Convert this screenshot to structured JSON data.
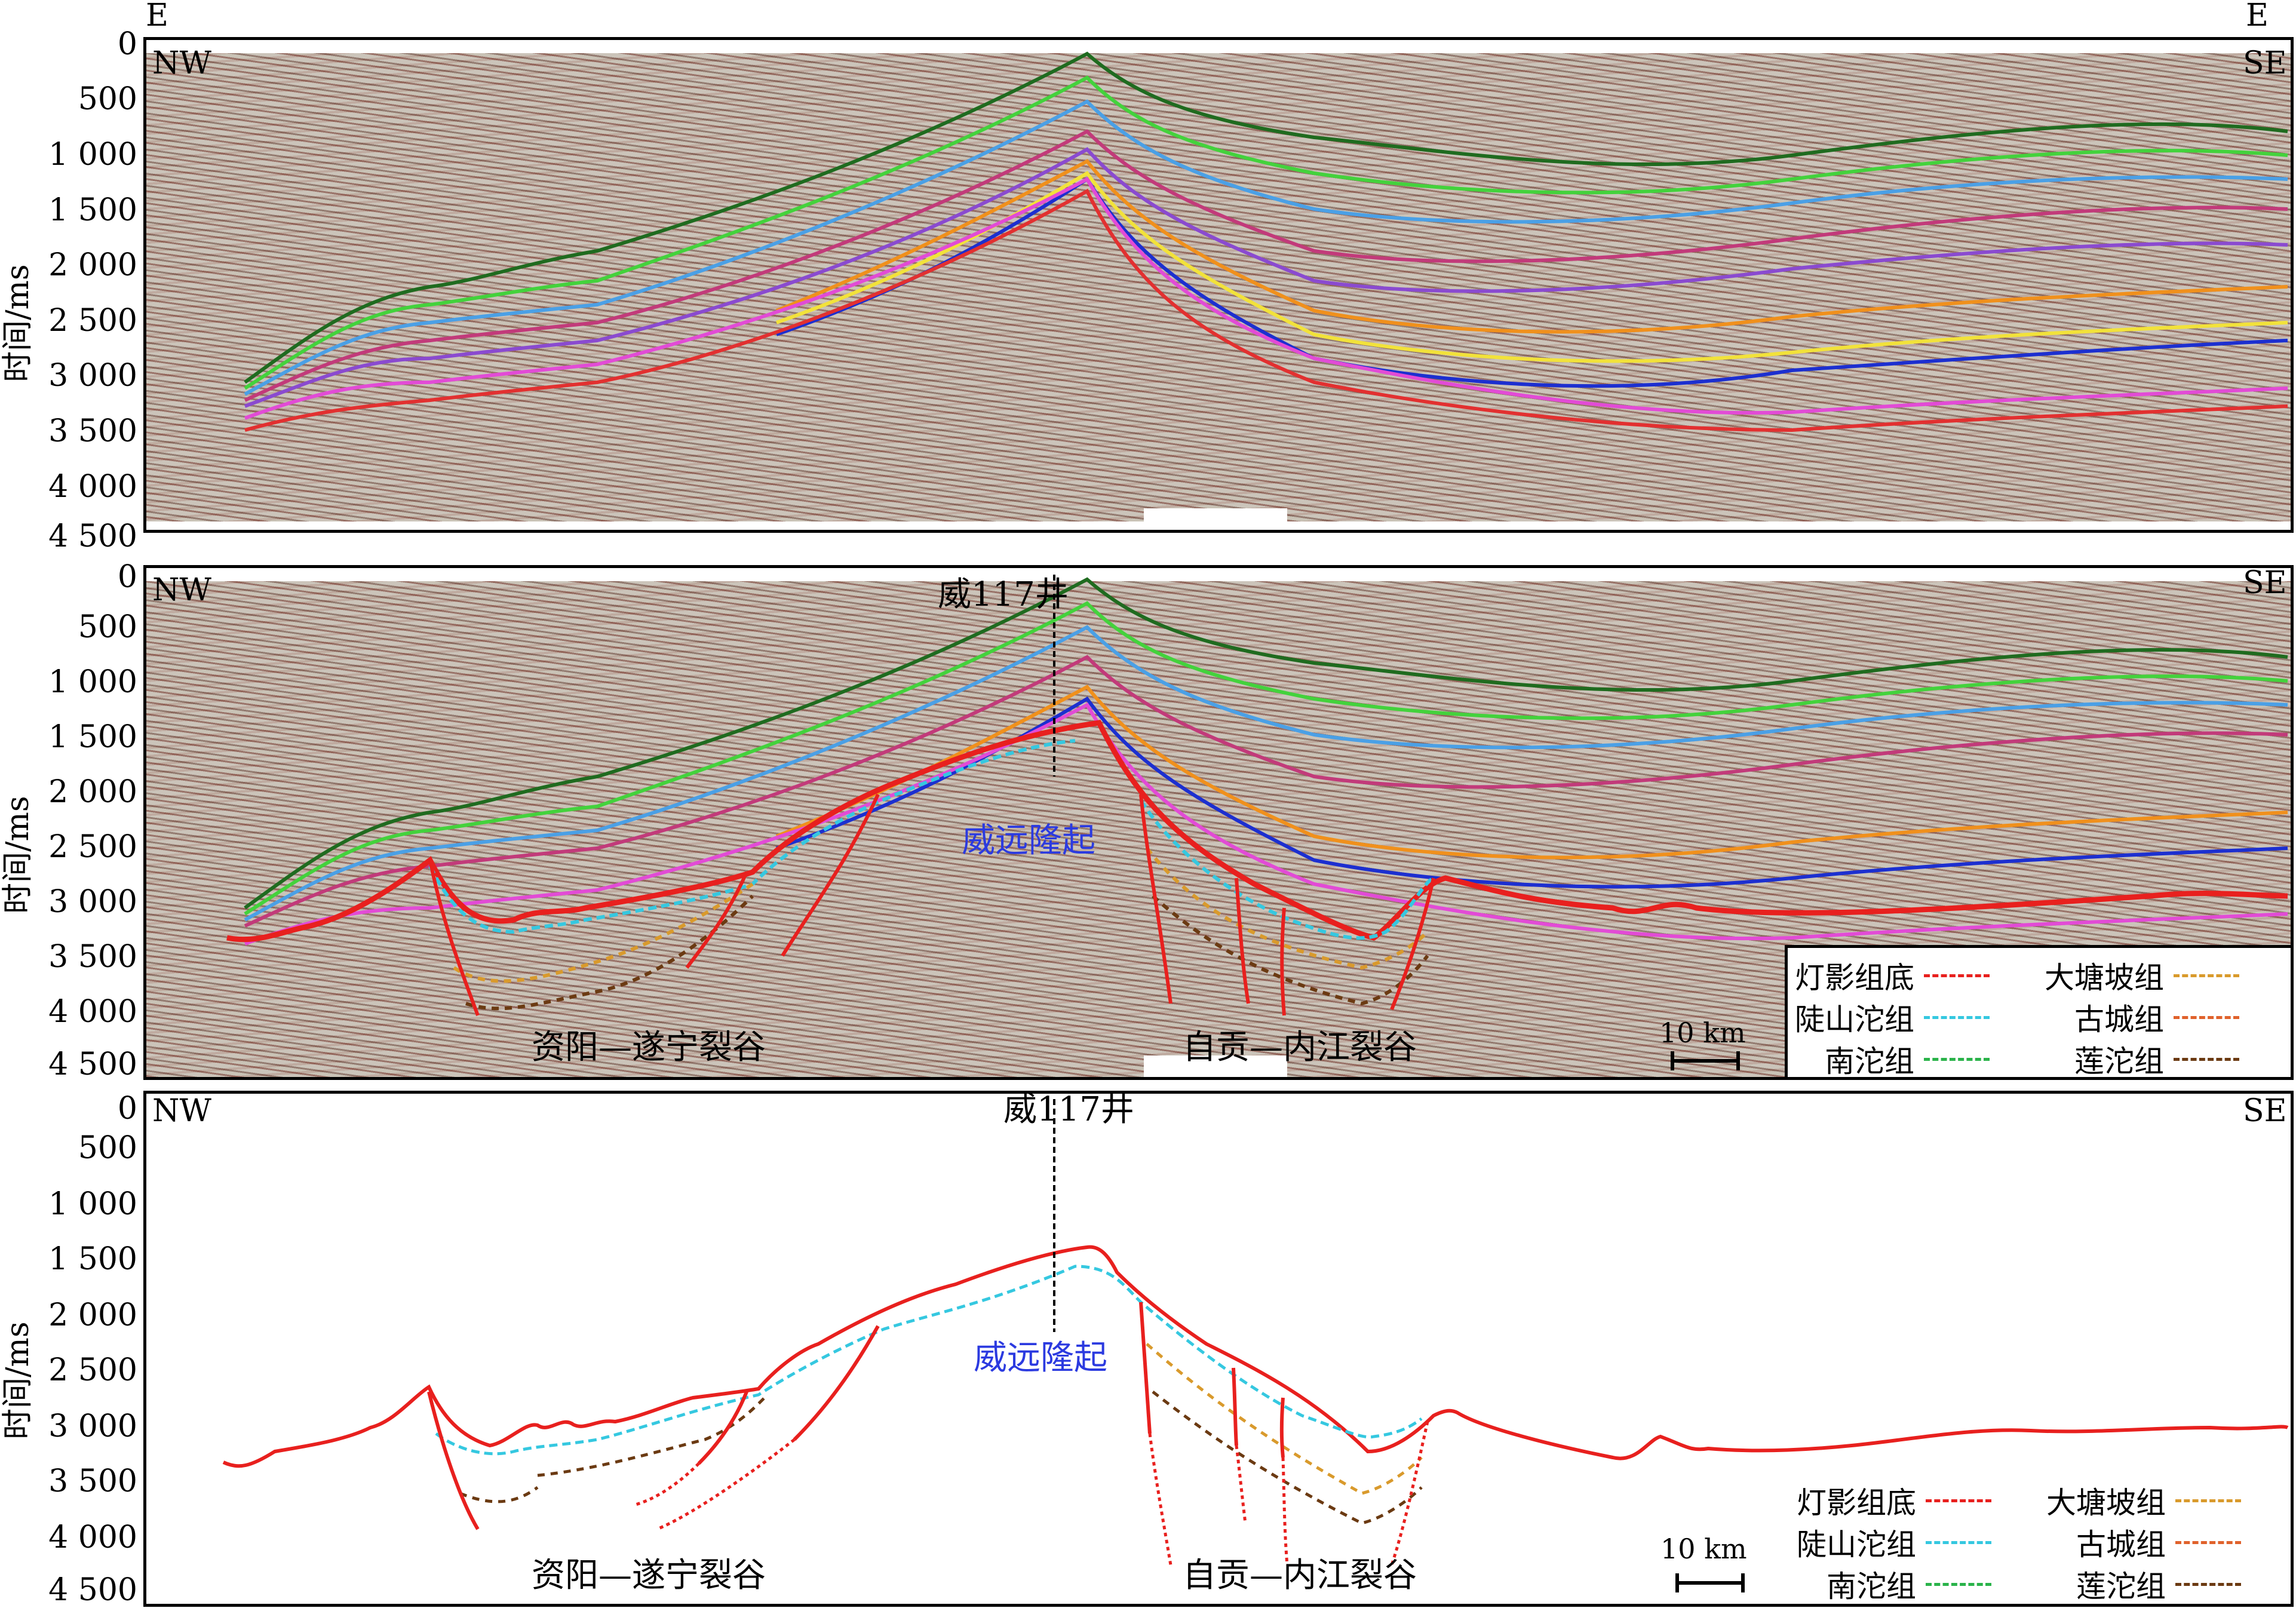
{
  "top_corner": {
    "left": "E",
    "right": "E"
  },
  "axis": {
    "label": "时间/ms",
    "ticks": [
      "0",
      "500",
      "1 000",
      "1 500",
      "2 000",
      "2 500",
      "3 000",
      "3 500",
      "4 000",
      "4 500"
    ]
  },
  "orientation": {
    "left": "NW",
    "right": "SE"
  },
  "annotations": {
    "well": "威117井",
    "uplift": "威远隆起",
    "rift_left": "资阳—遂宁裂谷",
    "rift_right": "自贡—内江裂谷",
    "scale": "10 km"
  },
  "legend": [
    {
      "label": "灯影组底",
      "color": "#e8201e"
    },
    {
      "label": "陡山沱组",
      "color": "#35c8e0"
    },
    {
      "label": "南沱组",
      "color": "#2ab34a"
    },
    {
      "label": "大塘坡组",
      "color": "#d99a2c"
    },
    {
      "label": "古城组",
      "color": "#e0622c"
    },
    {
      "label": "莲沱组",
      "color": "#6b3a12"
    }
  ],
  "horizon_colors": [
    "#1f6b1f",
    "#43d23c",
    "#4aa0e6",
    "#c23a7a",
    "#8a4ad0",
    "#f2e23a",
    "#1c2fd0",
    "#e24bd6",
    "#e23030",
    "#f0901c"
  ]
}
